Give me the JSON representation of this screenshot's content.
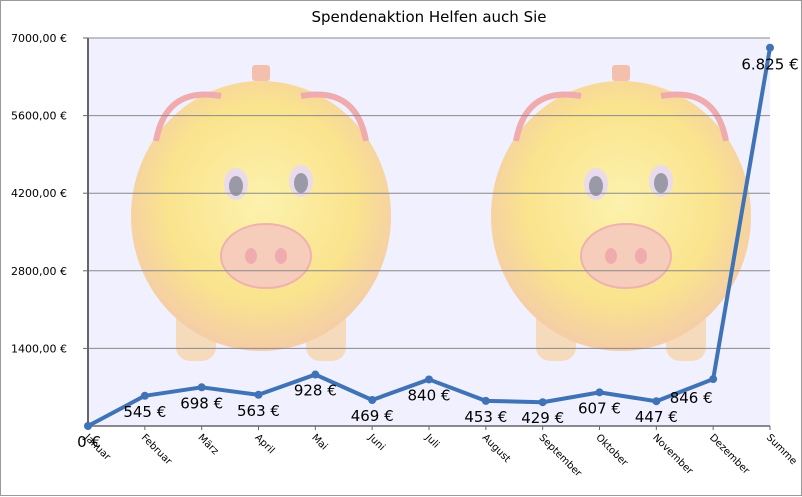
{
  "chart_data": {
    "type": "line",
    "title": "Spendenaktion Helfen auch Sie",
    "categories": [
      "Januar",
      "Februar",
      "März",
      "April",
      "Mai",
      "Juni",
      "Juli",
      "August",
      "September",
      "Oktober",
      "November",
      "Dezember",
      "Summe"
    ],
    "series": [
      {
        "values": [
          0,
          545,
          698,
          563,
          928,
          469,
          840,
          453,
          429,
          607,
          447,
          846,
          6825
        ],
        "data_labels": [
          "0 €",
          "545 €",
          "698 €",
          "563 €",
          "928 €",
          "469 €",
          "840 €",
          "453 €",
          "429 €",
          "607 €",
          "447 €",
          "846 €",
          "6.825 €"
        ],
        "color": "#3f73b5"
      }
    ],
    "yticks": [
      {
        "value": 1400,
        "label": "1400,00 €"
      },
      {
        "value": 2800,
        "label": "2800,00 €"
      },
      {
        "value": 4200,
        "label": "4200,00 €"
      },
      {
        "value": 5600,
        "label": "5600,00 €"
      },
      {
        "value": 7000,
        "label": "7000,00 €"
      }
    ],
    "ylim": [
      0,
      7000
    ],
    "grid": true,
    "legend": "none",
    "plot_background": "#f0f0ff",
    "background_image": "piggy-bank-icon"
  }
}
